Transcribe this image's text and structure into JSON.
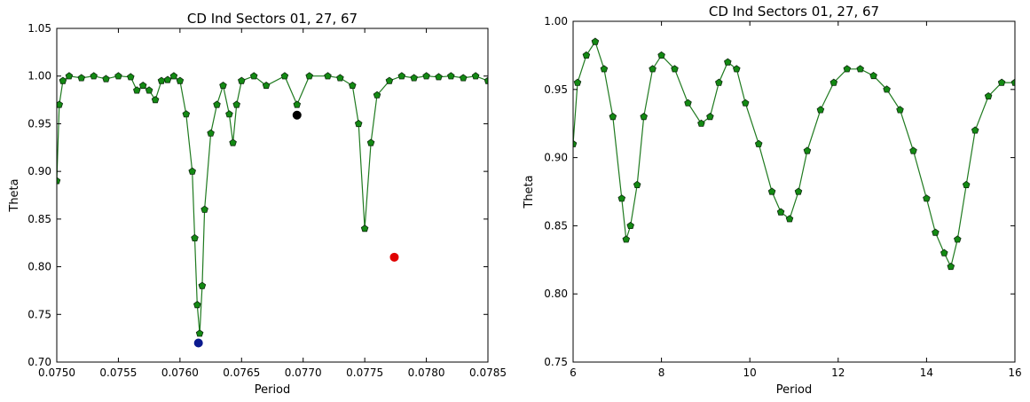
{
  "colors": {
    "series_line": "#1f7a1f",
    "series_marker_fill": "#138a13",
    "series_marker_edge": "#0d2a0d",
    "highlight_black": "#000000",
    "highlight_red": "#e00000",
    "highlight_blue": "#0b1a8f"
  },
  "chart_data": [
    {
      "type": "line",
      "title": "CD Ind Sectors 01, 27, 67",
      "xlabel": "Period",
      "ylabel": "Theta",
      "xlim": [
        0.075,
        0.0785
      ],
      "ylim": [
        0.7,
        1.05
      ],
      "xticks": [
        "0.0750",
        "0.0755",
        "0.0760",
        "0.0765",
        "0.0770",
        "0.0775",
        "0.0780",
        "0.0785"
      ],
      "yticks": [
        "0.70",
        "0.75",
        "0.80",
        "0.85",
        "0.90",
        "0.95",
        "1.00",
        "1.05"
      ],
      "grid": false,
      "series": [
        {
          "marker": "pentagon",
          "x": [
            0.075,
            0.07502,
            0.07505,
            0.0751,
            0.0752,
            0.0753,
            0.0754,
            0.0755,
            0.0756,
            0.07565,
            0.0757,
            0.07575,
            0.0758,
            0.07585,
            0.0759,
            0.07595,
            0.076,
            0.07605,
            0.0761,
            0.07612,
            0.07614,
            0.07616,
            0.07618,
            0.0762,
            0.07625,
            0.0763,
            0.07635,
            0.0764,
            0.07643,
            0.07646,
            0.0765,
            0.0766,
            0.0767,
            0.07685,
            0.07695,
            0.07705,
            0.0772,
            0.0773,
            0.0774,
            0.07745,
            0.0775,
            0.07755,
            0.0776,
            0.0777,
            0.0778,
            0.0779,
            0.078,
            0.0781,
            0.0782,
            0.0783,
            0.0784,
            0.0785
          ],
          "y": [
            0.89,
            0.97,
            0.995,
            1.0,
            0.998,
            1.0,
            0.997,
            1.0,
            0.999,
            0.985,
            0.99,
            0.985,
            0.975,
            0.995,
            0.996,
            1.0,
            0.995,
            0.96,
            0.9,
            0.83,
            0.76,
            0.73,
            0.78,
            0.86,
            0.94,
            0.97,
            0.99,
            0.96,
            0.93,
            0.97,
            0.995,
            1.0,
            0.99,
            1.0,
            0.97,
            1.0,
            1.0,
            0.998,
            0.99,
            0.95,
            0.84,
            0.93,
            0.98,
            0.995,
            1.0,
            0.998,
            1.0,
            0.999,
            1.0,
            0.998,
            1.0,
            0.995
          ]
        }
      ],
      "highlights": [
        {
          "x": 0.07695,
          "y": 0.959,
          "color": "black"
        },
        {
          "x": 0.07774,
          "y": 0.81,
          "color": "red"
        },
        {
          "x": 0.07615,
          "y": 0.72,
          "color": "blue"
        }
      ]
    },
    {
      "type": "line",
      "title": "CD Ind Sectors 01, 27, 67",
      "xlabel": "Period",
      "ylabel": "Theta",
      "xlim": [
        6,
        16
      ],
      "ylim": [
        0.75,
        1.0
      ],
      "xticks": [
        "6",
        "8",
        "10",
        "12",
        "14",
        "16"
      ],
      "yticks": [
        "0.75",
        "0.80",
        "0.85",
        "0.90",
        "0.95",
        "1.00"
      ],
      "grid": false,
      "series": [
        {
          "marker": "pentagon",
          "x": [
            6.0,
            6.1,
            6.3,
            6.5,
            6.7,
            6.9,
            7.1,
            7.2,
            7.3,
            7.45,
            7.6,
            7.8,
            8.0,
            8.3,
            8.6,
            8.9,
            9.1,
            9.3,
            9.5,
            9.7,
            9.9,
            10.2,
            10.5,
            10.7,
            10.9,
            11.1,
            11.3,
            11.6,
            11.9,
            12.2,
            12.5,
            12.8,
            13.1,
            13.4,
            13.7,
            14.0,
            14.2,
            14.4,
            14.55,
            14.7,
            14.9,
            15.1,
            15.4,
            15.7,
            16.0
          ],
          "y": [
            0.91,
            0.955,
            0.975,
            0.985,
            0.965,
            0.93,
            0.87,
            0.84,
            0.85,
            0.88,
            0.93,
            0.965,
            0.975,
            0.965,
            0.94,
            0.925,
            0.93,
            0.955,
            0.97,
            0.965,
            0.94,
            0.91,
            0.875,
            0.86,
            0.855,
            0.875,
            0.905,
            0.935,
            0.955,
            0.965,
            0.965,
            0.96,
            0.95,
            0.935,
            0.905,
            0.87,
            0.845,
            0.83,
            0.82,
            0.84,
            0.88,
            0.92,
            0.945,
            0.955,
            0.955
          ]
        }
      ],
      "highlights": []
    }
  ]
}
